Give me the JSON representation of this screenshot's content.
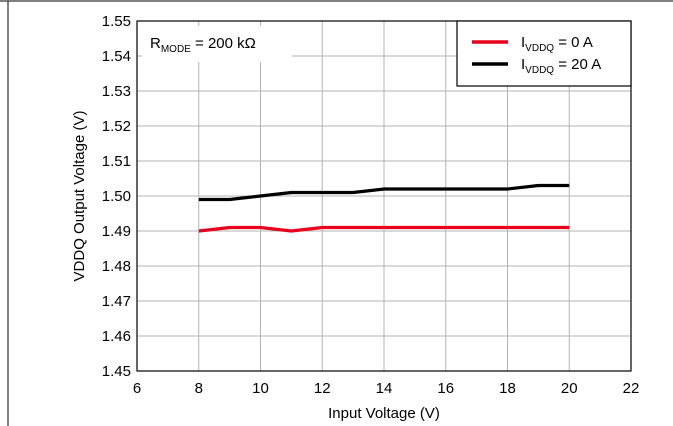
{
  "chart_data": {
    "type": "line",
    "xlabel": "Input Voltage (V)",
    "ylabel": "VDDQ Output Voltage (V)",
    "xlim": [
      6,
      22
    ],
    "ylim": [
      1.45,
      1.55
    ],
    "xticks": [
      6,
      8,
      10,
      12,
      14,
      16,
      18,
      20,
      22
    ],
    "yticks": [
      1.45,
      1.46,
      1.47,
      1.48,
      1.49,
      1.5,
      1.51,
      1.52,
      1.53,
      1.54,
      1.55
    ],
    "grid": true,
    "legend_position": "top-right",
    "annotation": {
      "main": "R",
      "sub": "MODE",
      "rest": " = 200 kΩ"
    },
    "series": [
      {
        "legend_main": "I",
        "legend_sub": "VDDQ",
        "legend_rest": " = 0 A",
        "color": "#e8001c",
        "x": [
          8,
          9,
          10,
          11,
          12,
          13,
          14,
          15,
          16,
          17,
          18,
          19,
          20
        ],
        "y": [
          1.49,
          1.491,
          1.491,
          1.49,
          1.491,
          1.491,
          1.491,
          1.491,
          1.491,
          1.491,
          1.491,
          1.491,
          1.491
        ]
      },
      {
        "legend_main": "I",
        "legend_sub": "VDDQ",
        "legend_rest": " = 20 A",
        "color": "#000000",
        "x": [
          8,
          9,
          10,
          11,
          12,
          13,
          14,
          15,
          16,
          17,
          18,
          19,
          20
        ],
        "y": [
          1.499,
          1.499,
          1.5,
          1.501,
          1.501,
          1.501,
          1.502,
          1.502,
          1.502,
          1.502,
          1.502,
          1.503,
          1.503
        ]
      }
    ]
  }
}
